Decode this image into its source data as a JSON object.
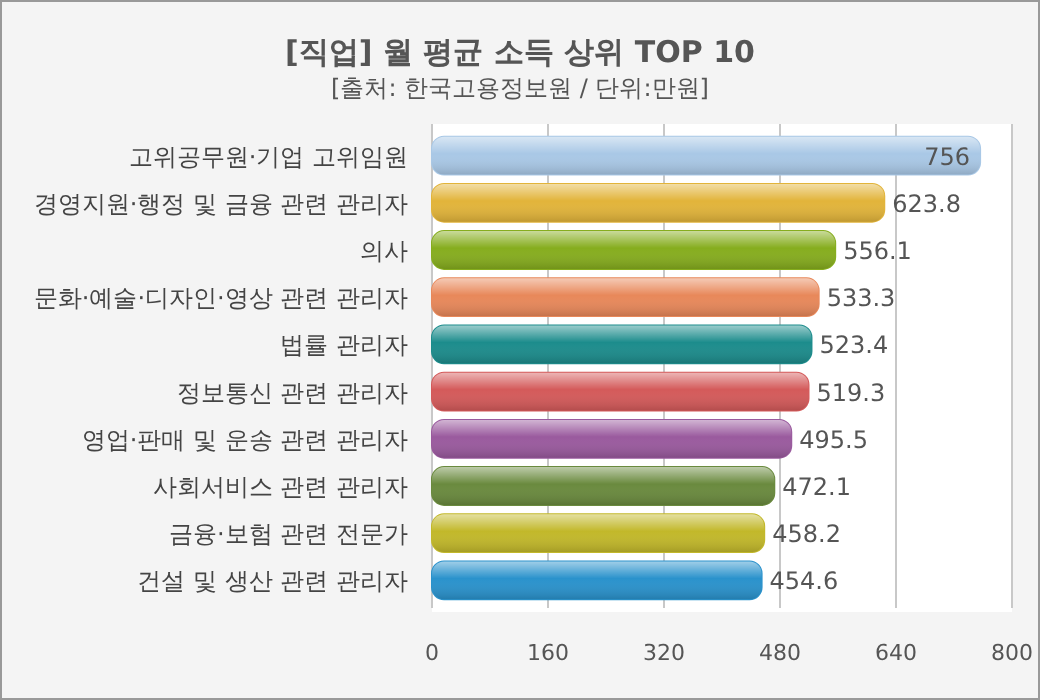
{
  "chart_data": {
    "type": "bar",
    "orientation": "horizontal",
    "title": "[직업] 월 평균 소득 상위 TOP 10",
    "subtitle": "[출처: 한국고용정보원 / 단위:만원]",
    "categories": [
      "고위공무원·기업 고위임원",
      "경영지원·행정 및 금융 관련 관리자",
      "의사",
      "문화·예술·디자인·영상 관련 관리자",
      "법률 관리자",
      "정보통신 관련 관리자",
      "영업·판매 및 운송 관련 관리자",
      "사회서비스 관련 관리자",
      "금융·보험 관련 전문가",
      "건설 및 생산 관련 관리자"
    ],
    "values": [
      756,
      623.8,
      556.1,
      533.3,
      523.4,
      519.3,
      495.5,
      472.1,
      458.2,
      454.6
    ],
    "colors": [
      "#a9c8e6",
      "#e2b43a",
      "#86ad1e",
      "#e8885a",
      "#1c8c8c",
      "#d45a5a",
      "#9a5a9e",
      "#6a8a3e",
      "#c2b82a",
      "#2a92cc"
    ],
    "xlim": [
      0,
      800
    ],
    "xticks": [
      0,
      160,
      320,
      480,
      640,
      800
    ],
    "grid": "x",
    "data_labels": true
  }
}
